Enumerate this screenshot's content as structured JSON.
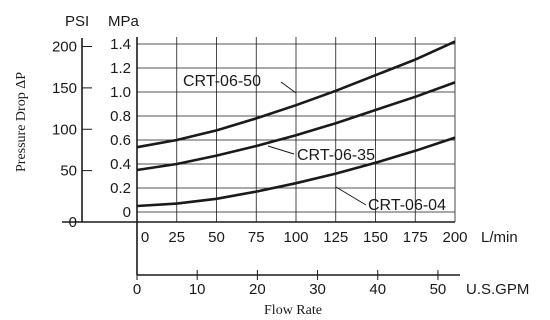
{
  "chart_data": {
    "type": "line",
    "units": {
      "psi": "PSI",
      "mpa": "MPa",
      "lmin": "L/min",
      "gpm": "U.S.GPM"
    },
    "ylabel": "Pressure Drop ΔP",
    "xlabel": "Flow Rate",
    "grid": true,
    "x_lmin": {
      "ticks": [
        0,
        25,
        50,
        75,
        100,
        125,
        150,
        175,
        200
      ],
      "range": [
        0,
        200
      ]
    },
    "x_gpm": {
      "ticks": [
        0,
        10,
        20,
        30,
        40,
        50
      ],
      "range": [
        0,
        52.8
      ]
    },
    "y_mpa": {
      "ticks": [
        0,
        0.2,
        0.4,
        0.6,
        0.8,
        1.0,
        1.2,
        1.4
      ],
      "tick_labels": [
        "0",
        "0.2",
        "0.4",
        "0.6",
        "0.8",
        "1.0",
        "1.2",
        "1.4"
      ],
      "range": [
        0,
        1.45
      ]
    },
    "y_psi": {
      "ticks": [
        0,
        50,
        100,
        150,
        200
      ],
      "range": [
        0,
        210
      ]
    },
    "series": [
      {
        "name": "CRT-06-50",
        "x": [
          0,
          25,
          50,
          75,
          100,
          125,
          150,
          175,
          200
        ],
        "y": [
          0.54,
          0.6,
          0.68,
          0.78,
          0.89,
          1.01,
          1.14,
          1.27,
          1.42
        ]
      },
      {
        "name": "CRT-06-35",
        "x": [
          0,
          25,
          50,
          75,
          100,
          125,
          150,
          175,
          200
        ],
        "y": [
          0.35,
          0.4,
          0.47,
          0.55,
          0.64,
          0.74,
          0.85,
          0.96,
          1.08
        ]
      },
      {
        "name": "CRT-06-04",
        "x": [
          0,
          25,
          50,
          75,
          100,
          125,
          150,
          175,
          200
        ],
        "y": [
          0.05,
          0.07,
          0.11,
          0.17,
          0.24,
          0.32,
          0.41,
          0.51,
          0.62
        ]
      }
    ]
  }
}
